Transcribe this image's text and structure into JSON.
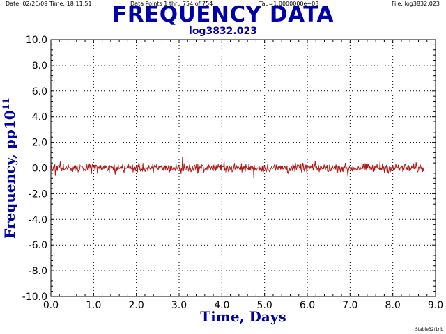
{
  "header": {
    "date": "Date: 02/26/09  Time: 18:11:51",
    "points": "Data Points 1 thru 754 of 754",
    "tau": "Tau=1.0000000e+03",
    "file": "File: log3832.023"
  },
  "footer": "Stable32/1nb",
  "colors": {
    "title": "#0000a8",
    "trace": "#b01818",
    "grid": "#000000"
  },
  "chart_data": {
    "type": "line",
    "title": "FREQUENCY DATA",
    "subtitle": "log3832.023",
    "xlabel": "Time, Days",
    "ylabel_main": "Frequency, pp10",
    "ylabel_exp": "11",
    "xlim": [
      0.0,
      9.0
    ],
    "ylim": [
      -10.0,
      10.0
    ],
    "grid": true,
    "x_ticks": [
      "0.0",
      "1.0",
      "2.0",
      "3.0",
      "4.0",
      "5.0",
      "6.0",
      "7.0",
      "8.0",
      "9.0"
    ],
    "y_ticks": [
      "10.0",
      "8.0",
      "6.0",
      "4.0",
      "2.0",
      "0.0",
      "-2.0",
      "-4.0",
      "-6.0",
      "-8.0",
      "-10.0"
    ],
    "series": [
      {
        "points_total": 754,
        "x_start": 0.0,
        "x_end": 8.72,
        "mean": 0.0,
        "range": [
          -0.8,
          0.9
        ],
        "notable": [
          {
            "x": 0.1,
            "y": -0.6
          },
          {
            "x": 0.22,
            "y": 0.5
          },
          {
            "x": 0.95,
            "y": -0.45
          },
          {
            "x": 1.5,
            "y": -0.5
          },
          {
            "x": 2.4,
            "y": -0.4
          },
          {
            "x": 3.08,
            "y": 0.9
          },
          {
            "x": 3.05,
            "y": -0.45
          },
          {
            "x": 4.05,
            "y": 0.55
          },
          {
            "x": 4.1,
            "y": -0.4
          },
          {
            "x": 4.75,
            "y": -0.8
          },
          {
            "x": 5.55,
            "y": -0.4
          },
          {
            "x": 6.18,
            "y": 0.55
          },
          {
            "x": 6.95,
            "y": -0.65
          },
          {
            "x": 7.7,
            "y": 0.55
          },
          {
            "x": 7.8,
            "y": -0.4
          },
          {
            "x": 8.55,
            "y": 0.45
          },
          {
            "x": 8.7,
            "y": -0.3
          }
        ]
      }
    ]
  }
}
